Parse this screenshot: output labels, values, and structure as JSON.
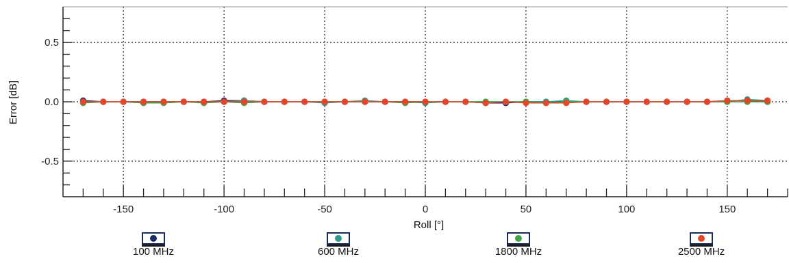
{
  "chart_data": {
    "type": "scatter",
    "xlabel": "Roll [°]",
    "ylabel": "Error [dB]",
    "xlim": [
      -180,
      180
    ],
    "ylim": [
      -0.8,
      0.8
    ],
    "x_ticks": [
      -150,
      -100,
      -50,
      0,
      50,
      100,
      150
    ],
    "y_ticks": [
      0.5,
      0.0,
      -0.5
    ],
    "y_tick_labels": [
      "0.5",
      "0.0",
      "-0.5"
    ],
    "grid": true,
    "legend_position": "bottom",
    "x": [
      -170,
      -160,
      -150,
      -140,
      -130,
      -120,
      -110,
      -100,
      -90,
      -80,
      -70,
      -60,
      -50,
      -40,
      -30,
      -20,
      -10,
      0,
      10,
      20,
      30,
      40,
      50,
      60,
      70,
      80,
      90,
      100,
      110,
      120,
      130,
      140,
      150,
      160,
      170
    ],
    "series": [
      {
        "name": "100 MHz",
        "color": "#1b2a63",
        "values": [
          0.01,
          0.0,
          0.0,
          0.0,
          0.0,
          0.0,
          0.0,
          0.01,
          0.01,
          0.0,
          0.0,
          0.0,
          0.0,
          0.0,
          0.0,
          0.0,
          0.0,
          0.0,
          0.0,
          0.0,
          -0.01,
          -0.01,
          0.0,
          0.0,
          0.0,
          0.0,
          0.0,
          0.0,
          0.0,
          0.0,
          0.0,
          0.0,
          0.01,
          0.01,
          0.0
        ]
      },
      {
        "name": "600 MHz",
        "color": "#2e9a8a",
        "values": [
          0.0,
          0.0,
          0.0,
          -0.01,
          0.0,
          0.0,
          0.0,
          0.0,
          0.01,
          0.0,
          0.0,
          0.0,
          -0.01,
          0.0,
          0.01,
          0.0,
          0.0,
          -0.01,
          0.0,
          0.0,
          0.0,
          0.0,
          0.0,
          0.0,
          0.01,
          0.0,
          0.0,
          0.0,
          0.0,
          0.0,
          0.0,
          0.0,
          0.0,
          0.02,
          0.01
        ]
      },
      {
        "name": "1800 MHz",
        "color": "#3fa44a",
        "values": [
          -0.01,
          0.0,
          0.0,
          -0.01,
          -0.01,
          0.0,
          -0.01,
          0.0,
          -0.01,
          0.0,
          0.0,
          0.0,
          0.0,
          0.0,
          0.0,
          0.0,
          -0.01,
          0.0,
          0.0,
          0.0,
          0.0,
          0.0,
          0.0,
          -0.01,
          0.0,
          0.0,
          0.0,
          0.0,
          0.0,
          0.0,
          0.0,
          0.0,
          0.0,
          0.0,
          0.0
        ]
      },
      {
        "name": "2500 MHz",
        "color": "#e5452b",
        "values": [
          0.0,
          0.0,
          0.0,
          0.0,
          0.0,
          0.0,
          0.0,
          0.0,
          0.0,
          0.0,
          0.0,
          0.0,
          0.0,
          0.0,
          0.0,
          0.0,
          0.0,
          0.0,
          0.0,
          0.0,
          -0.01,
          0.0,
          -0.01,
          -0.01,
          -0.01,
          0.0,
          0.0,
          0.0,
          0.0,
          0.0,
          0.0,
          0.0,
          0.01,
          0.01,
          0.01
        ]
      }
    ]
  }
}
